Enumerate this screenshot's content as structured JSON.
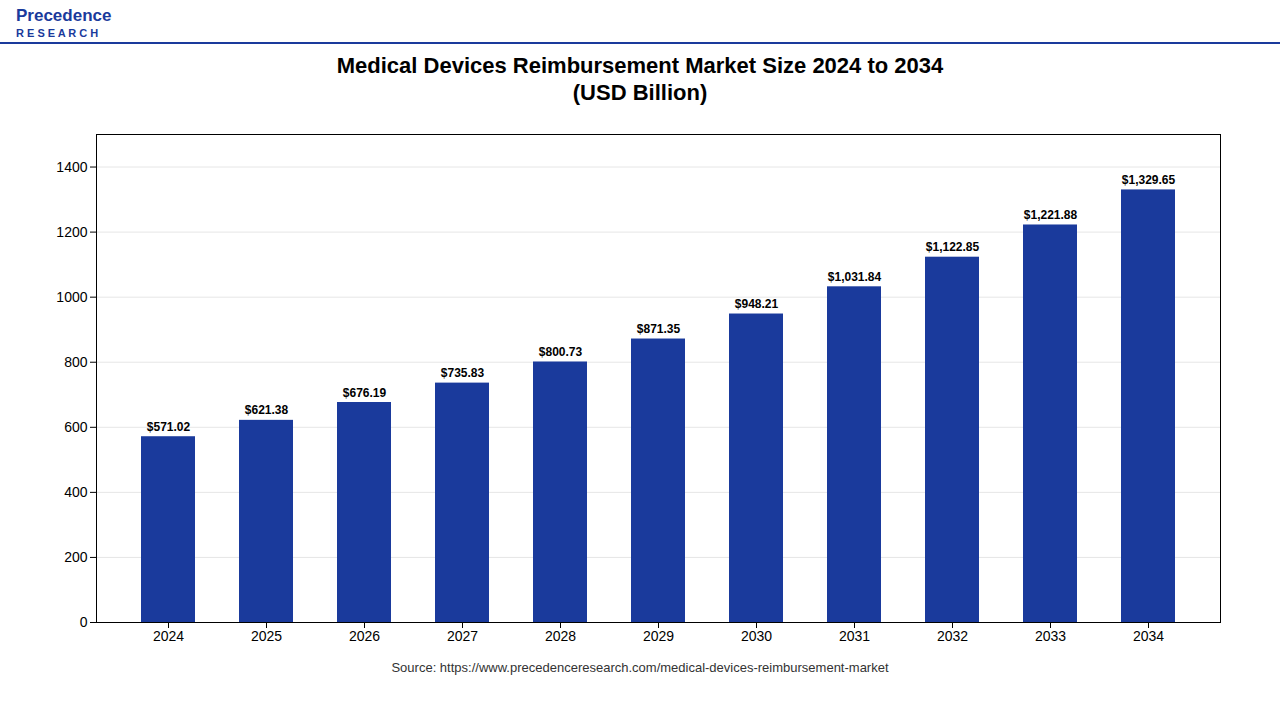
{
  "chart_data": {
    "type": "bar",
    "title": "Medical Devices Reimbursement Market Size 2024 to 2034\n(USD Billion)",
    "source": "Source: https://www.precedenceresearch.com/medical-devices-reimbursement-market",
    "annotations": [
      "Precedence",
      "R E S E A R C H"
    ],
    "categories": [
      "2024",
      "2025",
      "2026",
      "2027",
      "2028",
      "2029",
      "2030",
      "2031",
      "2032",
      "2033",
      "2034"
    ],
    "values": [
      571.02,
      621.38,
      676.19,
      735.83,
      800.73,
      871.35,
      948.21,
      1031.84,
      1122.85,
      1221.88,
      1329.65
    ],
    "value_labels": [
      "$571.02",
      "$621.38",
      "$676.19",
      "$735.83",
      "$800.73",
      "$871.35",
      "$948.21",
      "$1,031.84",
      "$1,122.85",
      "$1,221.88",
      "$1,329.65"
    ],
    "data_labels": true,
    "color": "#1a3a9c",
    "ylim": [
      0,
      1500
    ],
    "yticks": [
      0,
      200,
      400,
      600,
      800,
      1000,
      1200,
      1400
    ],
    "grid": true
  }
}
